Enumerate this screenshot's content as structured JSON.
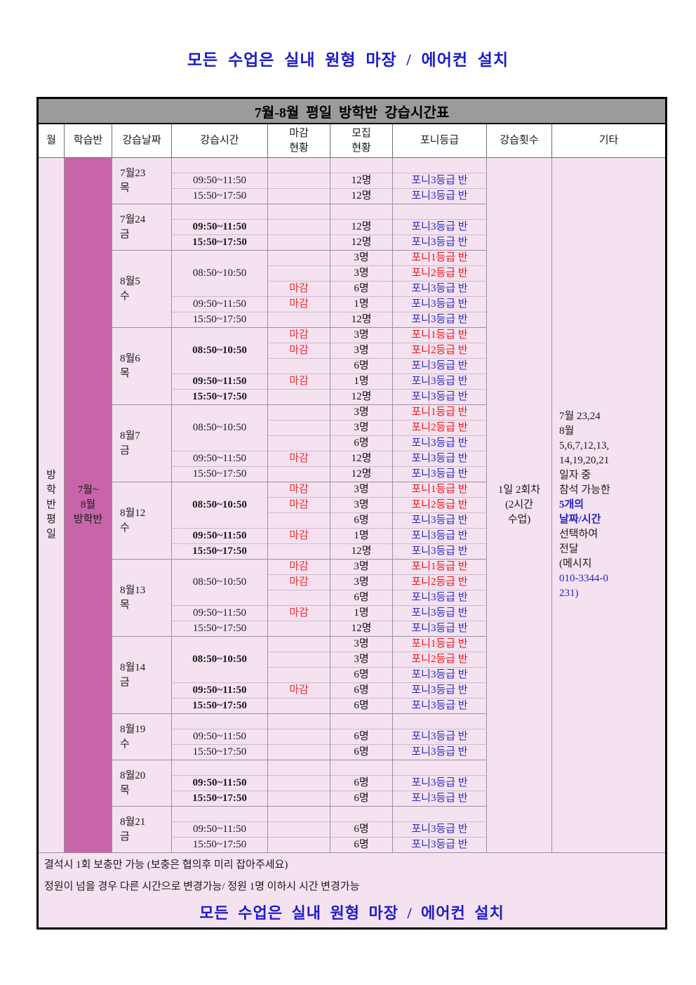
{
  "page": {
    "top_title": "모든 수업은 실내 원형 마장 / 에어컨 설치"
  },
  "colors": {
    "title_blue": "#1c1ccd",
    "titlebar_gray": "#9b9b9b",
    "body_pink": "#f5e2f0",
    "accent_magenta": "#c765a8",
    "closed_red": "#f32a2a",
    "grade1_red": "#ef1515",
    "grade3_blue": "#2b2bc3"
  },
  "table": {
    "title": "7월-8월 평일 방학반 강습시간표",
    "headers": [
      "월",
      "학습반",
      "강습날짜",
      "강습시간",
      "마감\n현황",
      "모집\n현황",
      "포니등급",
      "강습횟수",
      "기타"
    ],
    "month_text": "방\n학\n반\n평\n일",
    "class_text": "7월~\n8월\n방학반",
    "count_text": "1일 2회차\n(2시간\n수업)",
    "etc_lines": [
      {
        "t": "7월 23,24",
        "c": "k"
      },
      {
        "t": "8월",
        "c": "k"
      },
      {
        "t": "5,6,7,12,13,",
        "c": "k"
      },
      {
        "t": "14,19,20,21",
        "c": "k"
      },
      {
        "t": "일자 중",
        "c": "k"
      },
      {
        "t": "참석 가능한",
        "c": "k"
      },
      {
        "t": "5개의",
        "c": "bb"
      },
      {
        "t": "날짜/시간",
        "c": "bb"
      },
      {
        "t": "선택하여",
        "c": "k"
      },
      {
        "t": "전달",
        "c": "k"
      },
      {
        "t": "(메시지",
        "c": "k"
      },
      {
        "t": "010-3344-0",
        "c": "b"
      },
      {
        "t": "231)",
        "c": "b"
      }
    ],
    "groups": [
      {
        "date": "7월23",
        "day": "목",
        "bold": false,
        "rows": [
          {
            "time": "",
            "span": 1,
            "close": "",
            "num": "",
            "grade": "",
            "gc": ""
          },
          {
            "time": "09:50~11:50",
            "span": 1,
            "close": "",
            "num": "12명",
            "grade": "포니3등급 반",
            "gc": "b"
          },
          {
            "time": "15:50~17:50",
            "span": 1,
            "close": "",
            "num": "12명",
            "grade": "포니3등급 반",
            "gc": "b"
          }
        ]
      },
      {
        "date": "7월24",
        "day": "금",
        "bold": true,
        "rows": [
          {
            "time": "",
            "span": 1,
            "close": "",
            "num": "",
            "grade": "",
            "gc": ""
          },
          {
            "time": "09:50~11:50",
            "span": 1,
            "close": "",
            "num": "12명",
            "grade": "포니3등급 반",
            "gc": "b"
          },
          {
            "time": "15:50~17:50",
            "span": 1,
            "close": "",
            "num": "12명",
            "grade": "포니3등급 반",
            "gc": "b"
          }
        ]
      },
      {
        "date": "8월5",
        "day": "수",
        "bold": false,
        "rows": [
          {
            "time": "08:50~10:50",
            "span": 3,
            "close": "",
            "num": "3명",
            "grade": "포니1등급 반",
            "gc": "r"
          },
          {
            "time": null,
            "close": "",
            "num": "3명",
            "grade": "포니2등급 반",
            "gc": "r"
          },
          {
            "time": null,
            "close": "마감",
            "num": "6명",
            "grade": "포니3등급 반",
            "gc": "b"
          },
          {
            "time": "09:50~11:50",
            "span": 1,
            "close": "마감",
            "num": "1명",
            "grade": "포니3등급 반",
            "gc": "b"
          },
          {
            "time": "15:50~17:50",
            "span": 1,
            "close": "",
            "num": "12명",
            "grade": "포니3등급 반",
            "gc": "b"
          }
        ]
      },
      {
        "date": "8월6",
        "day": "목",
        "bold": true,
        "rows": [
          {
            "time": "08:50~10:50",
            "span": 3,
            "close": "마감",
            "num": "3명",
            "grade": "포니1등급 반",
            "gc": "r"
          },
          {
            "time": null,
            "close": "마감",
            "num": "3명",
            "grade": "포니2등급 반",
            "gc": "r"
          },
          {
            "time": null,
            "close": "",
            "num": "6명",
            "grade": "포니3등급 반",
            "gc": "b"
          },
          {
            "time": "09:50~11:50",
            "span": 1,
            "close": "마감",
            "num": "1명",
            "grade": "포니3등급 반",
            "gc": "b"
          },
          {
            "time": "15:50~17:50",
            "span": 1,
            "close": "",
            "num": "12명",
            "grade": "포니3등급 반",
            "gc": "b"
          }
        ]
      },
      {
        "date": "8월7",
        "day": "금",
        "bold": false,
        "rows": [
          {
            "time": "08:50~10:50",
            "span": 3,
            "close": "",
            "num": "3명",
            "grade": "포니1등급 반",
            "gc": "r"
          },
          {
            "time": null,
            "close": "",
            "num": "3명",
            "grade": "포니2등급 반",
            "gc": "r"
          },
          {
            "time": null,
            "close": "",
            "num": "6명",
            "grade": "포니3등급 반",
            "gc": "b"
          },
          {
            "time": "09:50~11:50",
            "span": 1,
            "close": "마감",
            "num": "12명",
            "grade": "포니3등급 반",
            "gc": "b"
          },
          {
            "time": "15:50~17:50",
            "span": 1,
            "close": "",
            "num": "12명",
            "grade": "포니3등급 반",
            "gc": "b"
          }
        ]
      },
      {
        "date": "8월12",
        "day": "수",
        "bold": true,
        "rows": [
          {
            "time": "08:50~10:50",
            "span": 3,
            "close": "마감",
            "num": "3명",
            "grade": "포니1등급 반",
            "gc": "r"
          },
          {
            "time": null,
            "close": "마감",
            "num": "3명",
            "grade": "포니2등급 반",
            "gc": "r"
          },
          {
            "time": null,
            "close": "",
            "num": "6명",
            "grade": "포니3등급 반",
            "gc": "b"
          },
          {
            "time": "09:50~11:50",
            "span": 1,
            "close": "마감",
            "num": "1명",
            "grade": "포니3등급 반",
            "gc": "b"
          },
          {
            "time": "15:50~17:50",
            "span": 1,
            "close": "",
            "num": "12명",
            "grade": "포니3등급 반",
            "gc": "b"
          }
        ]
      },
      {
        "date": "8월13",
        "day": "목",
        "bold": false,
        "rows": [
          {
            "time": "08:50~10:50",
            "span": 3,
            "close": "마감",
            "num": "3명",
            "grade": "포니1등급 반",
            "gc": "r"
          },
          {
            "time": null,
            "close": "마감",
            "num": "3명",
            "grade": "포니2등급 반",
            "gc": "r"
          },
          {
            "time": null,
            "close": "",
            "num": "6명",
            "grade": "포니3등급 반",
            "gc": "b"
          },
          {
            "time": "09:50~11:50",
            "span": 1,
            "close": "마감",
            "num": "1명",
            "grade": "포니3등급 반",
            "gc": "b"
          },
          {
            "time": "15:50~17:50",
            "span": 1,
            "close": "",
            "num": "12명",
            "grade": "포니3등급 반",
            "gc": "b"
          }
        ]
      },
      {
        "date": "8월14",
        "day": "금",
        "bold": true,
        "rows": [
          {
            "time": "08:50~10:50",
            "span": 3,
            "close": "",
            "num": "3명",
            "grade": "포니1등급 반",
            "gc": "r"
          },
          {
            "time": null,
            "close": "",
            "num": "3명",
            "grade": "포니2등급 반",
            "gc": "r"
          },
          {
            "time": null,
            "close": "",
            "num": "6명",
            "grade": "포니3등급 반",
            "gc": "b"
          },
          {
            "time": "09:50~11:50",
            "span": 1,
            "close": "마감",
            "num": "6명",
            "grade": "포니3등급 반",
            "gc": "b"
          },
          {
            "time": "15:50~17:50",
            "span": 1,
            "close": "",
            "num": "6명",
            "grade": "포니3등급 반",
            "gc": "b"
          }
        ]
      },
      {
        "date": "8월19",
        "day": "수",
        "bold": false,
        "rows": [
          {
            "time": "",
            "span": 1,
            "close": "",
            "num": "",
            "grade": "",
            "gc": ""
          },
          {
            "time": "09:50~11:50",
            "span": 1,
            "close": "",
            "num": "6명",
            "grade": "포니3등급 반",
            "gc": "b"
          },
          {
            "time": "15:50~17:50",
            "span": 1,
            "close": "",
            "num": "6명",
            "grade": "포니3등급 반",
            "gc": "b"
          }
        ]
      },
      {
        "date": "8월20",
        "day": "목",
        "bold": true,
        "rows": [
          {
            "time": "",
            "span": 1,
            "close": "",
            "num": "",
            "grade": "",
            "gc": ""
          },
          {
            "time": "09:50~11:50",
            "span": 1,
            "close": "",
            "num": "6명",
            "grade": "포니3등급 반",
            "gc": "b"
          },
          {
            "time": "15:50~17:50",
            "span": 1,
            "close": "",
            "num": "6명",
            "grade": "포니3등급 반",
            "gc": "b"
          }
        ]
      },
      {
        "date": "8월21",
        "day": "금",
        "bold": false,
        "rows": [
          {
            "time": "",
            "span": 1,
            "close": "",
            "num": "",
            "grade": "",
            "gc": ""
          },
          {
            "time": "09:50~11:50",
            "span": 1,
            "close": "",
            "num": "6명",
            "grade": "포니3등급 반",
            "gc": "b"
          },
          {
            "time": "15:50~17:50",
            "span": 1,
            "close": "",
            "num": "6명",
            "grade": "포니3등급 반",
            "gc": "b"
          }
        ]
      }
    ],
    "footer_lines": [
      "결석시 1회 보충만 가능 (보충은 협의후 미리 잡아주세요)",
      "정원이 넘을 경우 다른 시간으로 변경가능/ 정원 1명 이하시 시간 변경가능"
    ],
    "footer_big": "모든 수업은 실내 원형 마장 / 에어컨 설치"
  }
}
